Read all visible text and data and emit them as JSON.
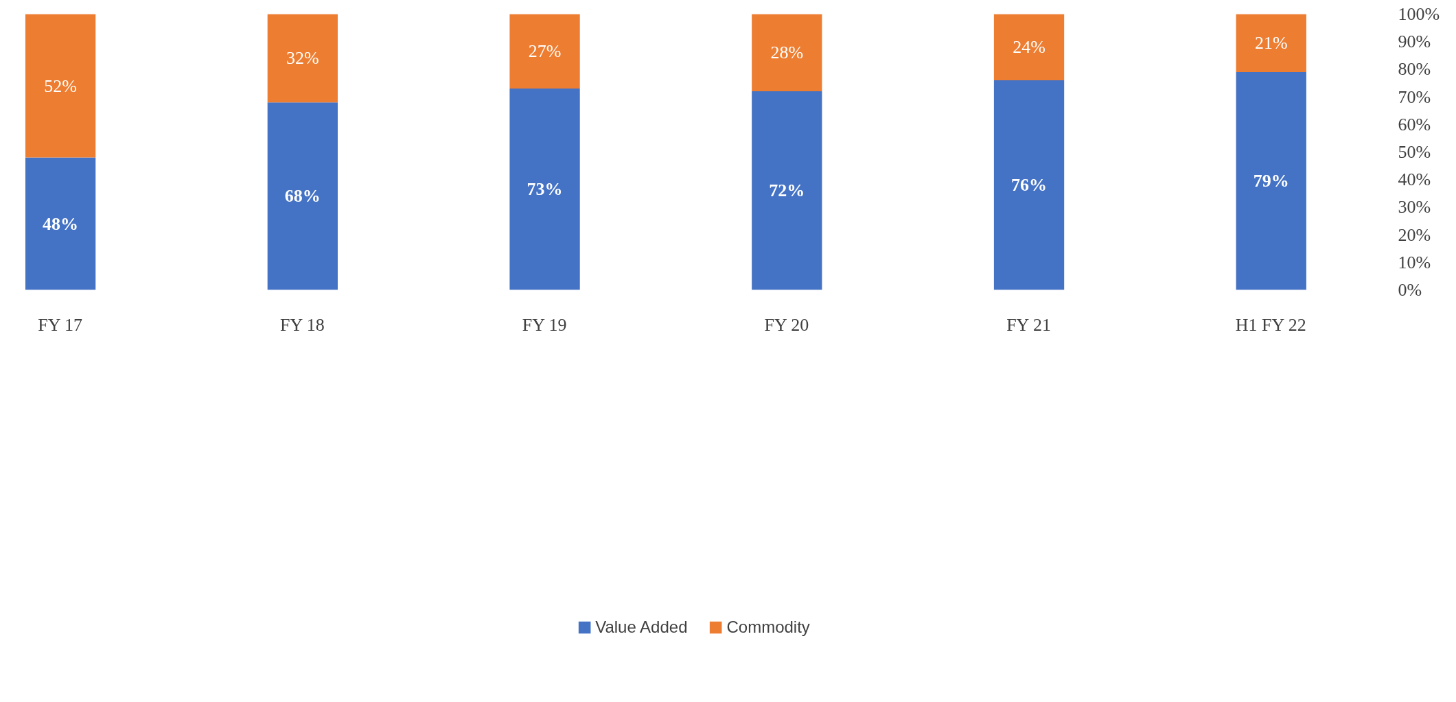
{
  "chart_data": {
    "type": "bar",
    "stacked": true,
    "categories": [
      "FY 17",
      "FY 18",
      "FY 19",
      "FY 20",
      "FY 21",
      "H1 FY 22"
    ],
    "series": [
      {
        "name": "Value Added",
        "color": "#4472c4",
        "values": [
          48,
          68,
          73,
          72,
          76,
          79
        ],
        "value_labels": [
          "48%",
          "68%",
          "73%",
          "72%",
          "76%",
          "79%"
        ]
      },
      {
        "name": "Commodity",
        "color": "#ed7d31",
        "values": [
          52,
          32,
          27,
          28,
          24,
          21
        ],
        "value_labels": [
          "52%",
          "32%",
          "27%",
          "28%",
          "24%",
          "21%"
        ]
      }
    ],
    "ylim": [
      0,
      100
    ],
    "yticks": [
      {
        "value": 0,
        "label": "0%"
      },
      {
        "value": 10,
        "label": "10%"
      },
      {
        "value": 20,
        "label": "20%"
      },
      {
        "value": 30,
        "label": "30%"
      },
      {
        "value": 40,
        "label": "40%"
      },
      {
        "value": 50,
        "label": "50%"
      },
      {
        "value": 60,
        "label": "60%"
      },
      {
        "value": 70,
        "label": "70%"
      },
      {
        "value": 80,
        "label": "80%"
      },
      {
        "value": 90,
        "label": "90%"
      },
      {
        "value": 100,
        "label": "100%"
      }
    ],
    "grid": false,
    "legend": "bottom"
  }
}
